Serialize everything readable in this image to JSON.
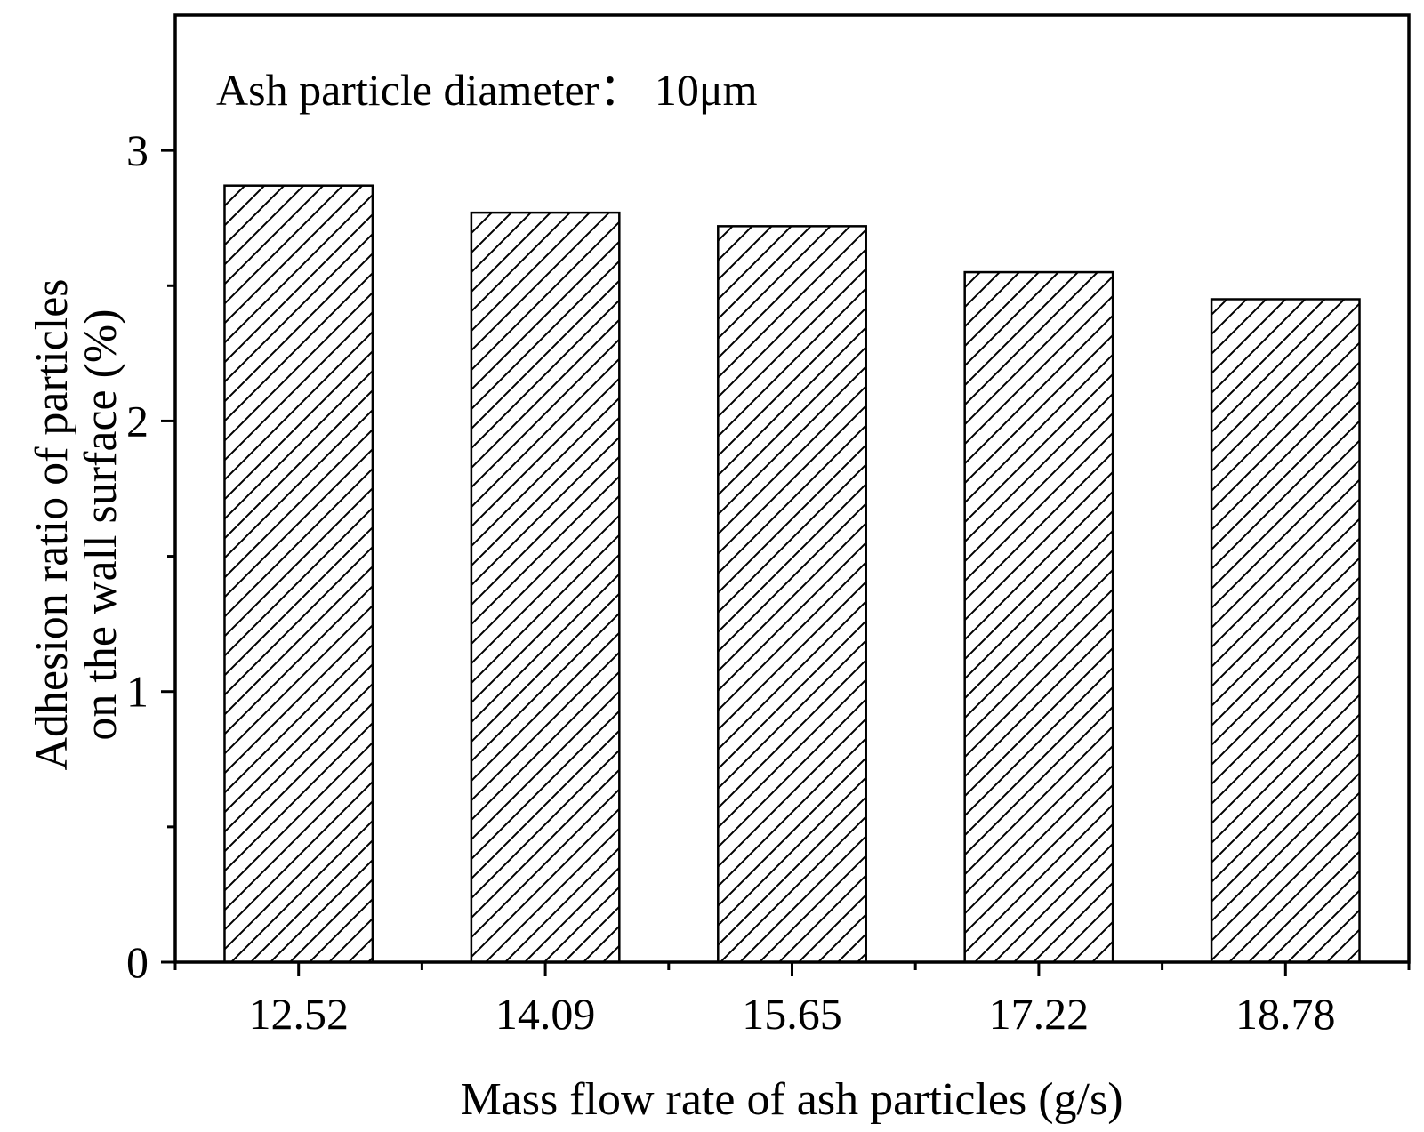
{
  "chart_data": {
    "type": "bar",
    "title": "",
    "annotation": "Ash particle diameter： 10μm",
    "categories": [
      "12.52",
      "14.09",
      "15.65",
      "17.22",
      "18.78"
    ],
    "values": [
      2.87,
      2.77,
      2.72,
      2.55,
      2.45
    ],
    "xlabel": "Mass flow rate of ash particles (g/s)",
    "ylabel_lines": [
      "Adhesion ratio of particles",
      "on the wall surface (%)"
    ],
    "ylim": [
      0,
      3.5
    ],
    "yticks_major": [
      0,
      1,
      2,
      3
    ],
    "yticks_minor": [
      0.5,
      1.5,
      2.5
    ],
    "ytick_labels": [
      "0",
      "1",
      "2",
      "3"
    ],
    "bar_fill": "hatched diagonal lines",
    "bar_color": "#000000",
    "background": "#ffffff",
    "grid": false,
    "legend": "none"
  }
}
